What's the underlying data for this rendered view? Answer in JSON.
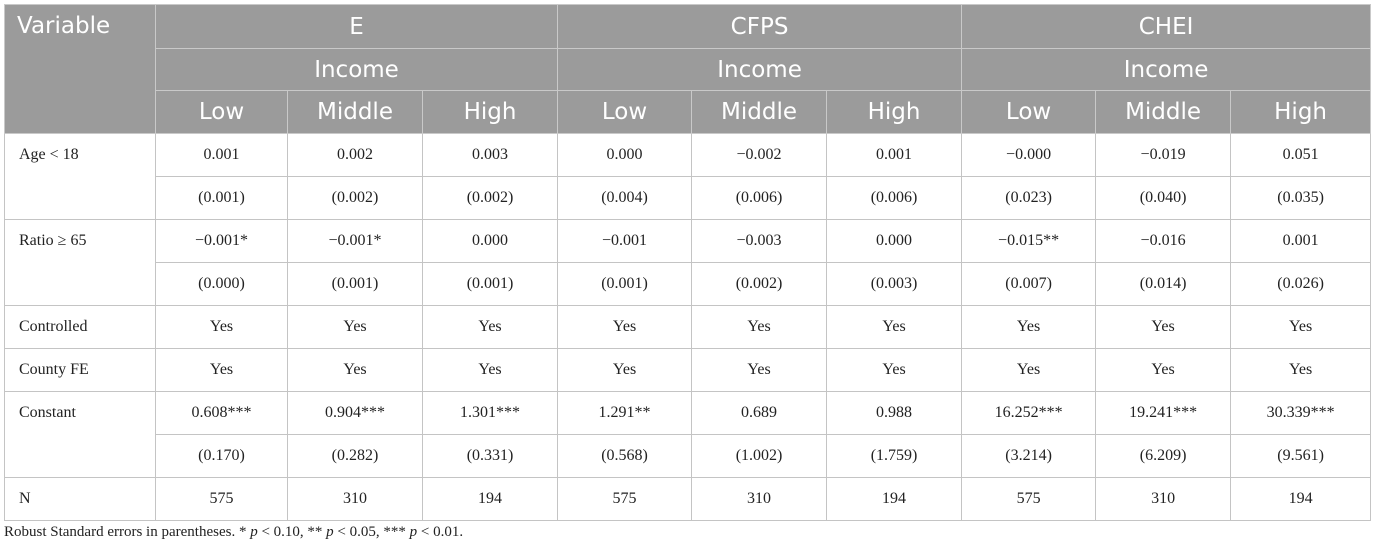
{
  "header": {
    "variable_label": "Variable",
    "groups": [
      "E",
      "CFPS",
      "CHEI"
    ],
    "subgroup_label": "Income",
    "levels": [
      "Low",
      "Middle",
      "High"
    ]
  },
  "rows": [
    {
      "label": "Age < 18",
      "values": [
        "0.001",
        "0.002",
        "0.003",
        "0.000",
        "−0.002",
        "0.001",
        "−0.000",
        "−0.019",
        "0.051"
      ],
      "se": [
        "(0.001)",
        "(0.002)",
        "(0.002)",
        "(0.004)",
        "(0.006)",
        "(0.006)",
        "(0.023)",
        "(0.040)",
        "(0.035)"
      ]
    },
    {
      "label": "Ratio ≥ 65",
      "values": [
        "−0.001*",
        "−0.001*",
        "0.000",
        "−0.001",
        "−0.003",
        "0.000",
        "−0.015**",
        "−0.016",
        "0.001"
      ],
      "se": [
        "(0.000)",
        "(0.001)",
        "(0.001)",
        "(0.001)",
        "(0.002)",
        "(0.003)",
        "(0.007)",
        "(0.014)",
        "(0.026)"
      ]
    },
    {
      "label": "Controlled",
      "values": [
        "Yes",
        "Yes",
        "Yes",
        "Yes",
        "Yes",
        "Yes",
        "Yes",
        "Yes",
        "Yes"
      ]
    },
    {
      "label": "County FE",
      "values": [
        "Yes",
        "Yes",
        "Yes",
        "Yes",
        "Yes",
        "Yes",
        "Yes",
        "Yes",
        "Yes"
      ]
    },
    {
      "label": "Constant",
      "values": [
        "0.608***",
        "0.904***",
        "1.301***",
        "1.291**",
        "0.689",
        "0.988",
        "16.252***",
        "19.241***",
        "30.339***"
      ],
      "se": [
        "(0.170)",
        "(0.282)",
        "(0.331)",
        "(0.568)",
        "(1.002)",
        "(1.759)",
        "(3.214)",
        "(6.209)",
        "(9.561)"
      ]
    },
    {
      "label": "N",
      "values": [
        "575",
        "310",
        "194",
        "575",
        "310",
        "194",
        "575",
        "310",
        "194"
      ]
    }
  ],
  "note": {
    "prefix": "Robust Standard errors in parentheses. * ",
    "p": "p",
    "t1": " < 0.10, ** ",
    "t2": " < 0.05, *** ",
    "t3": " < 0.01."
  }
}
